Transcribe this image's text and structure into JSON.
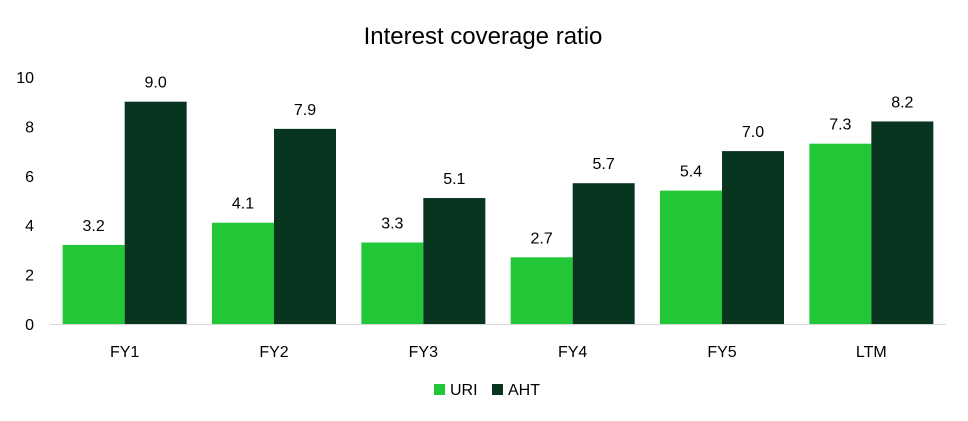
{
  "chart_data": {
    "type": "bar",
    "title": "Interest coverage ratio",
    "xlabel": "",
    "ylabel": "",
    "categories": [
      "FY1",
      "FY2",
      "FY3",
      "FY4",
      "FY5",
      "LTM"
    ],
    "series": [
      {
        "name": "URI",
        "color": "#22c737",
        "values": [
          3.2,
          4.1,
          3.3,
          2.7,
          5.4,
          7.3
        ]
      },
      {
        "name": "AHT",
        "color": "#083520",
        "values": [
          9.0,
          7.9,
          5.1,
          5.7,
          7.0,
          8.2
        ]
      }
    ],
    "ylim": [
      0,
      10
    ],
    "yticks": [
      0,
      2,
      4,
      6,
      8,
      10
    ],
    "grid": false,
    "legend": "bottom-center"
  }
}
